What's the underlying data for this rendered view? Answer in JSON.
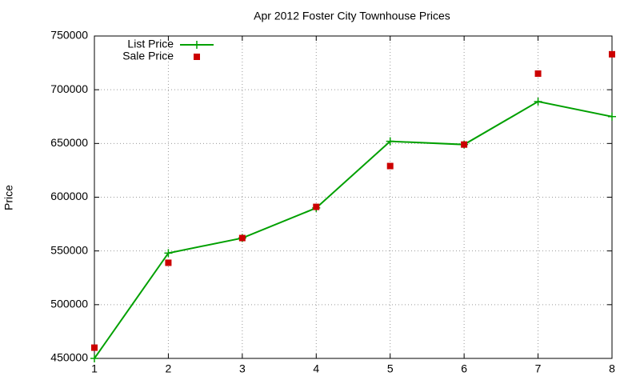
{
  "chart_data": {
    "type": "line",
    "title": "Apr 2012 Foster City Townhouse Prices",
    "y_label": "Price",
    "x": [
      1,
      2,
      3,
      4,
      5,
      6,
      7,
      8
    ],
    "xlim": [
      1,
      8
    ],
    "xticks": [
      1,
      2,
      3,
      4,
      5,
      6,
      7,
      8
    ],
    "ylim": [
      450000,
      750000
    ],
    "yticks": [
      450000,
      500000,
      550000,
      600000,
      650000,
      700000,
      750000
    ],
    "grid": true,
    "legend": "top-left",
    "series": [
      {
        "name": "List Price",
        "color": "#00a000",
        "style": "linespoints",
        "values": [
          450000,
          548000,
          562000,
          590000,
          652000,
          649000,
          689000,
          675000
        ]
      },
      {
        "name": "Sale Price",
        "color": "#cc0000",
        "style": "points",
        "values": [
          460000,
          539000,
          562000,
          591000,
          629000,
          649000,
          715000,
          733000
        ]
      }
    ]
  }
}
